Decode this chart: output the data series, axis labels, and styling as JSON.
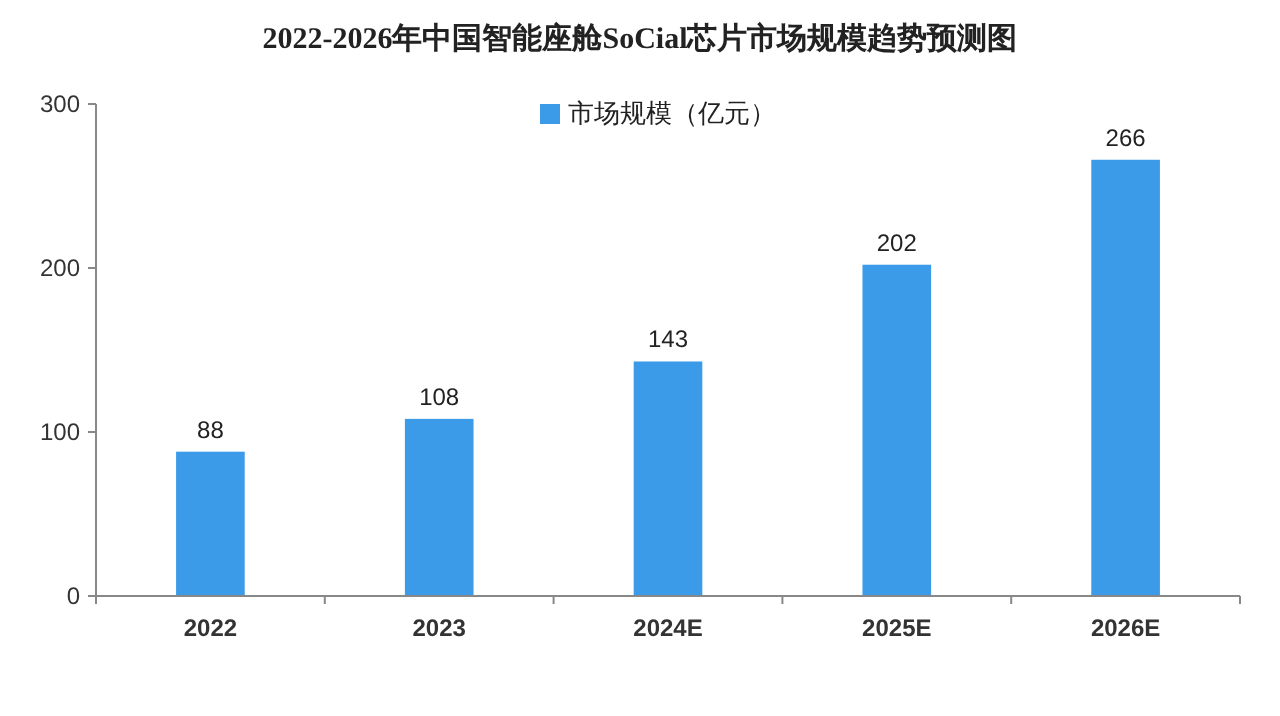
{
  "chart_data": {
    "type": "bar",
    "title": "2022-2026年中国智能座舱SoCial芯片市场规模趋势预测图",
    "categories": [
      "2022",
      "2023",
      "2024E",
      "2025E",
      "2026E"
    ],
    "series": [
      {
        "name": "市场规模（亿元）",
        "color": "#3b9be9",
        "values": [
          88,
          108,
          143,
          202,
          266
        ]
      }
    ],
    "ylim": [
      0,
      300
    ],
    "yticks": [
      0,
      100,
      200,
      300
    ],
    "grid": false,
    "legend": "top",
    "data_labels": true
  }
}
